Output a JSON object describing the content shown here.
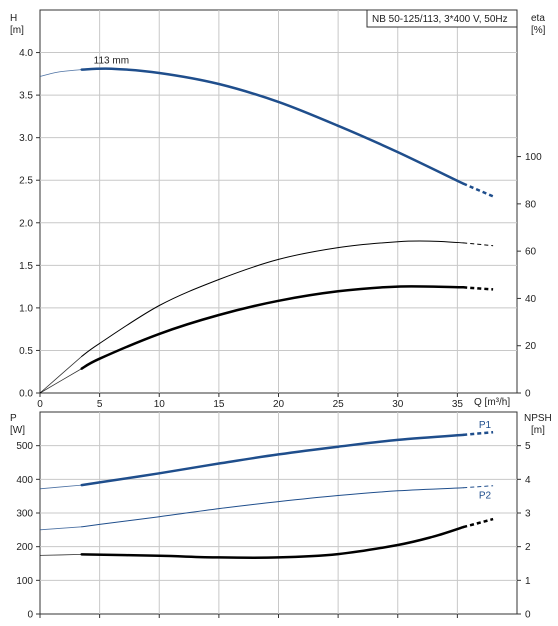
{
  "title_box": "NB 50-125/113, 3*400 V, 50Hz",
  "colors": {
    "blue": "#1f4e8c",
    "black": "#000000",
    "grid": "#c8c8c8"
  },
  "chart_data": [
    {
      "type": "line",
      "panel": "head-efficiency",
      "xlabel": "Q [m³/h]",
      "ylabel_left": [
        "H",
        "[m]"
      ],
      "ylabel_right": [
        "eta",
        "[%]"
      ],
      "xlim": [
        0,
        40
      ],
      "ylim_left": [
        0,
        4.5
      ],
      "ylim_right": [
        0,
        162
      ],
      "xticks": [
        "0",
        "5",
        "10",
        "15",
        "20",
        "25",
        "30",
        "35"
      ],
      "xtick_values": [
        0,
        5,
        10,
        15,
        20,
        25,
        30,
        35
      ],
      "yticks_left": [
        "0.0",
        "0.5",
        "1.0",
        "1.5",
        "2.0",
        "2.5",
        "3.0",
        "3.5",
        "4.0"
      ],
      "ytick_left_values": [
        0,
        0.5,
        1.0,
        1.5,
        2.0,
        2.5,
        3.0,
        3.5,
        4.0
      ],
      "yticks_right": [
        "0",
        "20",
        "40",
        "60",
        "80",
        "100"
      ],
      "ytick_right_values": [
        0,
        20,
        40,
        60,
        80,
        100
      ],
      "annotations": [
        {
          "text": "113 mm",
          "x": 4.5,
          "y": 3.87
        }
      ],
      "series": [
        {
          "name": "",
          "axis": "left",
          "color": "#1f4e8c",
          "width": 2.5,
          "x": [
            3.5,
            6,
            10,
            15,
            20,
            25,
            30,
            35.5
          ],
          "y": [
            3.8,
            3.81,
            3.76,
            3.63,
            3.42,
            3.14,
            2.83,
            2.46
          ],
          "ext_left": {
            "x": [
              0,
              1.5,
              3.5
            ],
            "y": [
              3.72,
              3.77,
              3.8
            ]
          },
          "ext_right": {
            "x": [
              35.5,
              38
            ],
            "y": [
              2.46,
              2.31
            ]
          }
        },
        {
          "name": "",
          "axis": "right",
          "color": "#000000",
          "width": 1,
          "x": [
            3.5,
            5,
            10,
            15,
            20,
            25,
            30,
            33,
            35.5
          ],
          "y": [
            15.5,
            21,
            37,
            48,
            56.5,
            61.5,
            64,
            64.2,
            63.5
          ],
          "ext_left": {
            "x": [
              0,
              3.5
            ],
            "y": [
              0,
              15.5
            ]
          },
          "ext_right": {
            "x": [
              35.5,
              38
            ],
            "y": [
              63.5,
              62.3
            ]
          }
        },
        {
          "name": "",
          "axis": "right",
          "color": "#000000",
          "width": 2.5,
          "x": [
            3.5,
            5,
            10,
            15,
            20,
            25,
            30,
            35.5
          ],
          "y": [
            10.3,
            14.5,
            25,
            33,
            39,
            43,
            45,
            44.7
          ],
          "ext_left": {
            "x": [
              0,
              3.5
            ],
            "y": [
              0,
              10.3
            ]
          },
          "ext_right": {
            "x": [
              35.5,
              38
            ],
            "y": [
              44.7,
              43.8
            ]
          }
        }
      ]
    },
    {
      "type": "line",
      "panel": "power-npsh",
      "ylabel_left": [
        "P",
        "[W]"
      ],
      "ylabel_right": [
        "NPSH",
        "[m]"
      ],
      "xlim": [
        0,
        40
      ],
      "ylim_left": [
        0,
        600
      ],
      "ylim_right": [
        0,
        6
      ],
      "yticks_left": [
        "0",
        "100",
        "200",
        "300",
        "400",
        "500"
      ],
      "ytick_left_values": [
        0,
        100,
        200,
        300,
        400,
        500
      ],
      "yticks_right": [
        "0",
        "1",
        "2",
        "3",
        "4",
        "5"
      ],
      "ytick_right_values": [
        0,
        1,
        2,
        3,
        4,
        5
      ],
      "series": [
        {
          "name": "P1",
          "axis": "left",
          "color": "#1f4e8c",
          "width": 2.5,
          "x": [
            3.5,
            5,
            10,
            15,
            20,
            25,
            30,
            35.5
          ],
          "y": [
            383,
            391,
            418,
            447,
            474,
            497,
            517,
            532
          ],
          "ext_left": {
            "x": [
              0,
              3.5
            ],
            "y": [
              372,
              383
            ]
          },
          "ext_right": {
            "x": [
              35.5,
              38
            ],
            "y": [
              532,
              540
            ]
          },
          "label_pos": {
            "x": 36.8,
            "y": 562
          }
        },
        {
          "name": "P2",
          "axis": "left",
          "color": "#1f4e8c",
          "width": 1,
          "x": [
            3.5,
            5,
            10,
            15,
            20,
            25,
            30,
            35.5
          ],
          "y": [
            259,
            266,
            289,
            313,
            334,
            352,
            366,
            375
          ],
          "ext_left": {
            "x": [
              0,
              3.5
            ],
            "y": [
              250,
              259
            ]
          },
          "ext_right": {
            "x": [
              35.5,
              38
            ],
            "y": [
              375,
              381
            ]
          },
          "label_pos": {
            "x": 36.8,
            "y": 352
          }
        },
        {
          "name": "",
          "axis": "right",
          "color": "#000000",
          "width": 2.5,
          "x": [
            3.5,
            10,
            15,
            20,
            25,
            30,
            33,
            35.5
          ],
          "y": [
            1.77,
            1.73,
            1.68,
            1.68,
            1.78,
            2.05,
            2.3,
            2.58
          ],
          "ext_left": {
            "x": [
              0,
              3.5
            ],
            "y": [
              1.74,
              1.77
            ]
          },
          "ext_right": {
            "x": [
              35.5,
              38
            ],
            "y": [
              2.58,
              2.82
            ]
          }
        }
      ]
    }
  ]
}
